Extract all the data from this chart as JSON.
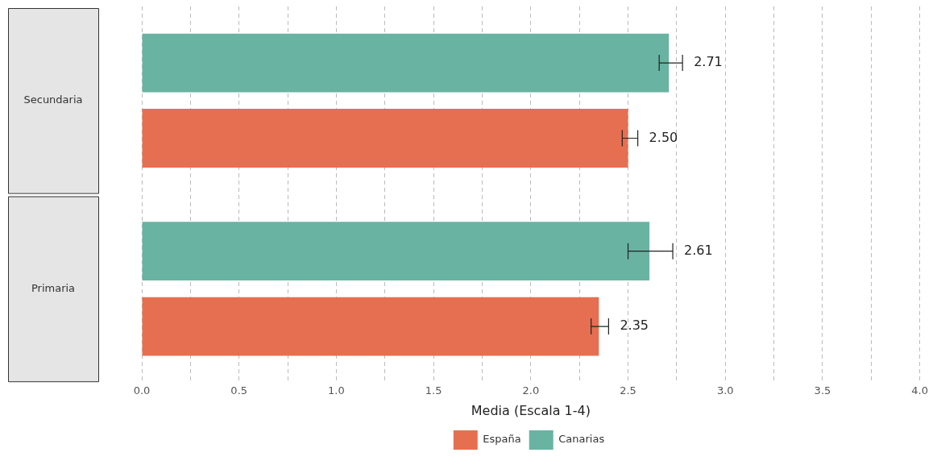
{
  "chart_data": {
    "type": "bar",
    "orientation": "horizontal",
    "categories": [
      "Secundaria",
      "Primaria"
    ],
    "xlabel": "Media (Escala 1-4)",
    "series": [
      {
        "name": "España",
        "color": "#e66f51",
        "values": [
          2.5,
          2.35
        ],
        "errors": [
          [
            2.47,
            2.55
          ],
          [
            2.31,
            2.4
          ]
        ],
        "value_labels": [
          "2.50",
          "2.35"
        ]
      },
      {
        "name": "Canarias",
        "color": "#69b3a2",
        "values": [
          2.71,
          2.61
        ],
        "errors": [
          [
            2.66,
            2.78
          ],
          [
            2.5,
            2.73
          ]
        ],
        "value_labels": [
          "2.71",
          "2.61"
        ]
      }
    ],
    "xlim": [
      0,
      4
    ],
    "xticks": [
      {
        "value": 0,
        "label": "0.0"
      },
      {
        "value": 0.25,
        "label": null
      },
      {
        "value": 0.5,
        "label": "0.5"
      },
      {
        "value": 0.75,
        "label": null
      },
      {
        "value": 1,
        "label": "1.0"
      },
      {
        "value": 1.25,
        "label": null
      },
      {
        "value": 1.5,
        "label": "1.5"
      },
      {
        "value": 1.75,
        "label": null
      },
      {
        "value": 2,
        "label": "2.0"
      },
      {
        "value": 2.25,
        "label": null
      },
      {
        "value": 2.5,
        "label": "2.5"
      },
      {
        "value": 2.75,
        "label": null
      },
      {
        "value": 3,
        "label": "3.0"
      },
      {
        "value": 3.25,
        "label": null
      },
      {
        "value": 3.5,
        "label": "3.5"
      },
      {
        "value": 3.75,
        "label": null
      },
      {
        "value": 4,
        "label": "4.0"
      }
    ],
    "grid": "x",
    "legend": "bottom"
  }
}
